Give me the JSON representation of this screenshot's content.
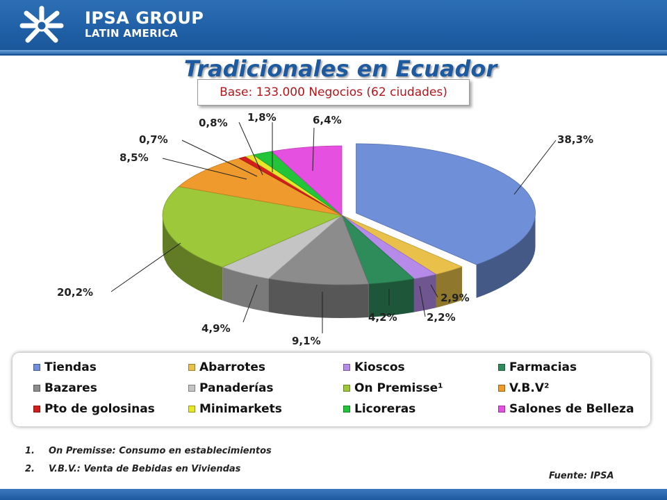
{
  "brand": {
    "line1": "IPSA GROUP",
    "line2": "LATIN AMERICA"
  },
  "title": "Tradicionales en Ecuador",
  "subtitle": "Base: 133.000 Negocios (62 ciudades)",
  "chart_data": {
    "type": "pie",
    "title": "Tradicionales en Ecuador",
    "subtitle": "Base: 133.000 Negocios (62 ciudades)",
    "legend_position": "bottom",
    "slices": [
      {
        "name": "Tiendas",
        "value": 38.3,
        "label": "38,3%",
        "color": "#6f8fd8"
      },
      {
        "name": "Abarrotes",
        "value": 2.9,
        "label": "2,9%",
        "color": "#e8c04a"
      },
      {
        "name": "Kioscos",
        "value": 2.2,
        "label": "2,2%",
        "color": "#b58ae8"
      },
      {
        "name": "Farmacias",
        "value": 4.2,
        "label": "4,2%",
        "color": "#2e8b5a"
      },
      {
        "name": "Bazares",
        "value": 9.1,
        "label": "9,1%",
        "color": "#8c8c8c"
      },
      {
        "name": "Panaderías",
        "value": 4.9,
        "label": "4,9%",
        "color": "#c4c4c4"
      },
      {
        "name": "On Premisse¹",
        "value": 20.2,
        "label": "20,2%",
        "color": "#9cc83a"
      },
      {
        "name": "V.B.V²",
        "value": 8.5,
        "label": "8,5%",
        "color": "#ef9a2d"
      },
      {
        "name": "Pto de golosinas",
        "value": 0.7,
        "label": "0,7%",
        "color": "#d31e1e"
      },
      {
        "name": "Minimarkets",
        "value": 0.8,
        "label": "0,8%",
        "color": "#e6e62a"
      },
      {
        "name": "Licoreras",
        "value": 1.8,
        "label": "1,8%",
        "color": "#22c43a"
      },
      {
        "name": "Salones de Belleza",
        "value": 6.4,
        "label": "6,4%",
        "color": "#e650e0"
      }
    ]
  },
  "legend": [
    {
      "label": "Tiendas",
      "color": "#6f8fd8"
    },
    {
      "label": "Abarrotes",
      "color": "#e8c04a"
    },
    {
      "label": "Kioscos",
      "color": "#b58ae8"
    },
    {
      "label": "Farmacias",
      "color": "#2e8b5a"
    },
    {
      "label": "Bazares",
      "color": "#8c8c8c"
    },
    {
      "label": "Panaderías",
      "color": "#c4c4c4"
    },
    {
      "label": "On Premisse¹",
      "color": "#9cc83a"
    },
    {
      "label": "V.B.V²",
      "color": "#ef9a2d"
    },
    {
      "label": "Pto de golosinas",
      "color": "#d31e1e"
    },
    {
      "label": "Minimarkets",
      "color": "#e6e62a"
    },
    {
      "label": "Licoreras",
      "color": "#22c43a"
    },
    {
      "label": "Salones de Belleza",
      "color": "#e650e0"
    }
  ],
  "notes": [
    {
      "num": "1.",
      "text": "On Premisse: Consumo en establecimientos"
    },
    {
      "num": "2.",
      "text": "V.B.V.: Venta de Bebidas en Viviendas"
    }
  ],
  "source": "Fuente: IPSA",
  "colors": {
    "header_blue": "#1f5fa5",
    "title_blue": "#1d5aa0",
    "subtitle_red": "#b3151b"
  }
}
